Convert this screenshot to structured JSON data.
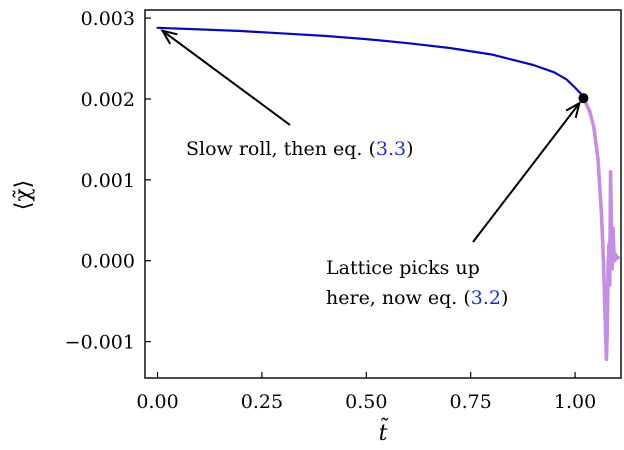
{
  "chart_data": {
    "type": "line",
    "xlabel": "t̃",
    "ylabel": "⟨χ̃⟩",
    "xlim": [
      -0.03,
      1.11
    ],
    "ylim": [
      -0.00145,
      0.0031
    ],
    "xticks": [
      0.0,
      0.25,
      0.5,
      0.75,
      1.0
    ],
    "xtick_labels": [
      "0.00",
      "0.25",
      "0.50",
      "0.75",
      "1.00"
    ],
    "yticks": [
      -0.001,
      0.0,
      0.001,
      0.002,
      0.003
    ],
    "ytick_labels": [
      "−0.001",
      "0.000",
      "0.001",
      "0.002",
      "0.003"
    ],
    "grid": false,
    "legend": "none",
    "series": [
      {
        "color": "#0a0ab5",
        "x": [
          0.0,
          0.1,
          0.2,
          0.3,
          0.4,
          0.5,
          0.6,
          0.7,
          0.8,
          0.9,
          0.95,
          0.98,
          1.0,
          1.015,
          1.02
        ],
        "y": [
          0.00288,
          0.00286,
          0.00284,
          0.00281,
          0.00278,
          0.00274,
          0.00269,
          0.00263,
          0.00255,
          0.00242,
          0.00233,
          0.00224,
          0.00214,
          0.00206,
          0.00201
        ]
      },
      {
        "color": "#c48fe0",
        "x": [
          1.02,
          1.035,
          1.045,
          1.055,
          1.063,
          1.068,
          1.072,
          1.075,
          1.077,
          1.079,
          1.081,
          1.083,
          1.085,
          1.087,
          1.089,
          1.091,
          1.093,
          1.095,
          1.097,
          1.1,
          1.103
        ],
        "y": [
          0.00201,
          0.00185,
          0.00165,
          0.00125,
          0.0006,
          0.0,
          -0.0007,
          -0.00122,
          -0.0009,
          -0.0001,
          0.0002,
          -0.0003,
          0.0011,
          0.0005,
          -0.0001,
          0.0004,
          0.0001,
          0.0,
          8e-05,
          3e-05,
          4e-05
        ]
      }
    ],
    "marker": {
      "x": 1.02,
      "y": 0.00201,
      "color": "#000000"
    },
    "annotations": [
      {
        "text": "Slow roll, then eq. (",
        "ref": "3.3",
        "close": ")",
        "arrow_to": [
          0.0,
          0.00288
        ]
      },
      {
        "text": "Lattice picks up",
        "text2": "here, now eq. (",
        "ref": "3.2",
        "close": ")",
        "arrow_to": [
          1.02,
          0.00201
        ]
      }
    ]
  }
}
